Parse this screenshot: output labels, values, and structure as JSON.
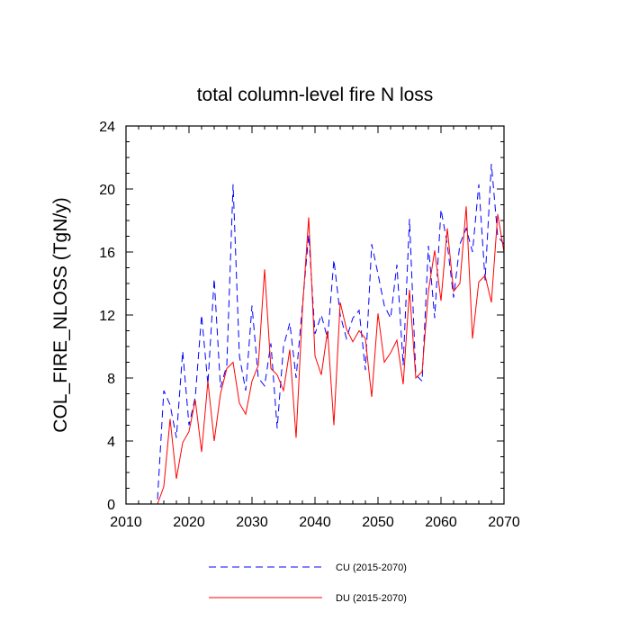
{
  "chart_data": {
    "type": "line",
    "title": "total column-level fire N loss",
    "xlabel": "",
    "ylabel": "COL_FIRE_NLOSS  (TgN/y)",
    "xlim": [
      2010,
      2070
    ],
    "ylim": [
      0,
      24
    ],
    "xticks": [
      2010,
      2020,
      2030,
      2040,
      2050,
      2060,
      2070
    ],
    "yticks": [
      0,
      4,
      8,
      12,
      16,
      20,
      24
    ],
    "grid": false,
    "legend_position": "bottom-center",
    "x": [
      2015,
      2016,
      2017,
      2018,
      2019,
      2020,
      2021,
      2022,
      2023,
      2024,
      2025,
      2026,
      2027,
      2028,
      2029,
      2030,
      2031,
      2032,
      2033,
      2034,
      2035,
      2036,
      2037,
      2038,
      2039,
      2040,
      2041,
      2042,
      2043,
      2044,
      2045,
      2046,
      2047,
      2048,
      2049,
      2050,
      2051,
      2052,
      2053,
      2054,
      2055,
      2056,
      2057,
      2058,
      2059,
      2060,
      2061,
      2062,
      2063,
      2064,
      2065,
      2066,
      2067,
      2068,
      2069,
      2070
    ],
    "series": [
      {
        "name": "CU (2015-2070)",
        "color": "#0000ff",
        "dash": "dashed",
        "values": [
          0.3,
          7.2,
          6.3,
          4.2,
          9.7,
          5.0,
          6.8,
          12.0,
          7.6,
          14.3,
          7.4,
          8.8,
          20.3,
          9.4,
          7.2,
          12.6,
          8.0,
          7.5,
          10.2,
          4.8,
          10.0,
          11.5,
          8.0,
          12.6,
          17.1,
          10.8,
          12.0,
          10.5,
          15.5,
          12.0,
          10.5,
          11.8,
          12.3,
          8.5,
          16.5,
          14.6,
          12.6,
          11.8,
          15.2,
          8.8,
          18.1,
          8.2,
          7.8,
          16.4,
          11.8,
          18.7,
          16.5,
          13.1,
          16.5,
          17.5,
          16.0,
          20.3,
          14.2,
          21.6,
          17.0,
          16.5
        ]
      },
      {
        "name": "DU (2015-2070)",
        "color": "#ff0000",
        "dash": "solid",
        "values": [
          0.0,
          1.1,
          5.4,
          1.6,
          3.9,
          4.6,
          6.6,
          3.3,
          7.8,
          4.0,
          7.0,
          8.6,
          9.0,
          6.4,
          5.7,
          7.8,
          8.8,
          14.9,
          8.6,
          8.2,
          7.2,
          9.8,
          4.2,
          12.3,
          18.2,
          9.4,
          8.2,
          11.0,
          5.0,
          12.8,
          11.1,
          10.3,
          11.0,
          10.5,
          6.8,
          12.1,
          9.0,
          9.6,
          10.4,
          7.6,
          13.6,
          8.0,
          8.4,
          13.5,
          16.1,
          12.9,
          17.5,
          13.5,
          14.0,
          18.9,
          10.5,
          14.1,
          14.5,
          12.8,
          18.4,
          16.0
        ]
      }
    ]
  }
}
